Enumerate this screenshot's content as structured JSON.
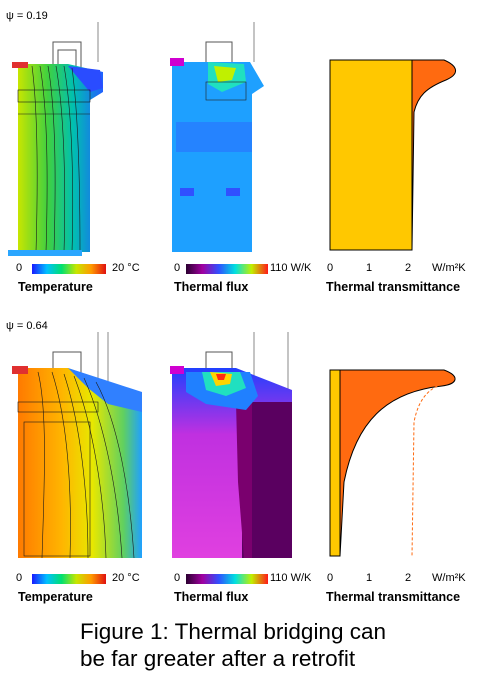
{
  "rows": [
    {
      "psi_label": "ψ = 0.19",
      "temperature_scale": {
        "min_label": "0",
        "max_label": "20 °C",
        "title": "Temperature"
      },
      "flux_scale": {
        "min_label": "0",
        "max_label": "110 W/K",
        "title": "Thermal flux"
      },
      "transmittance": {
        "ticks": [
          "0",
          "1",
          "2"
        ],
        "unit_label": "W/m²K",
        "title": "Thermal transmittance"
      }
    },
    {
      "psi_label": "ψ = 0.64",
      "temperature_scale": {
        "min_label": "0",
        "max_label": "20 °C",
        "title": "Temperature"
      },
      "flux_scale": {
        "min_label": "0",
        "max_label": "110 W/K",
        "title": "Thermal flux"
      },
      "transmittance": {
        "ticks": [
          "0",
          "1",
          "2"
        ],
        "unit_label": "W/m²K",
        "title": "Thermal transmittance"
      }
    }
  ],
  "caption": {
    "line1": "Figure 1: Thermal bridging can",
    "line2": "be far greater after a retrofit"
  },
  "colors": {
    "profile_fill": "#ffc800",
    "peak_fill": "#ff6a10",
    "flux_low": "#7a006e",
    "flux_high": "#ffd400"
  }
}
